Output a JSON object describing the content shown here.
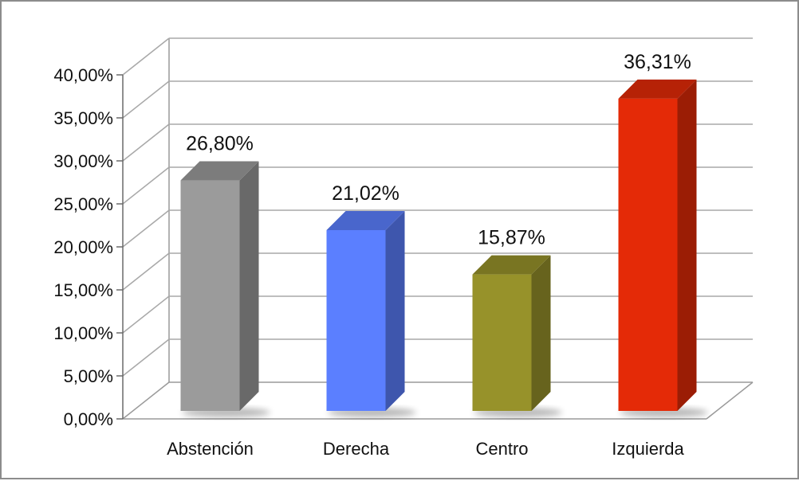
{
  "chart_data": {
    "type": "bar",
    "style": "3d-column",
    "categories": [
      "Abstención",
      "Derecha",
      "Centro",
      "Izquierda"
    ],
    "values": [
      26.8,
      21.02,
      15.87,
      36.31
    ],
    "data_labels": [
      "26,80%",
      "21,02%",
      "15,87%",
      "36,31%"
    ],
    "ylim": [
      0,
      40
    ],
    "yticks": [
      {
        "value": 0,
        "label": "0,00%"
      },
      {
        "value": 5,
        "label": "5,00%"
      },
      {
        "value": 10,
        "label": "10,00%"
      },
      {
        "value": 15,
        "label": "15,00%"
      },
      {
        "value": 20,
        "label": "20,00%"
      },
      {
        "value": 25,
        "label": "25,00%"
      },
      {
        "value": 30,
        "label": "30,00%"
      },
      {
        "value": 35,
        "label": "35,00%"
      },
      {
        "value": 40,
        "label": "40,00%"
      }
    ],
    "grid": true,
    "legend": "none",
    "colors": [
      "#9b9b9b",
      "#5b7fff",
      "#97922a",
      "#e42a07"
    ],
    "title": "",
    "xlabel": "",
    "ylabel": ""
  }
}
